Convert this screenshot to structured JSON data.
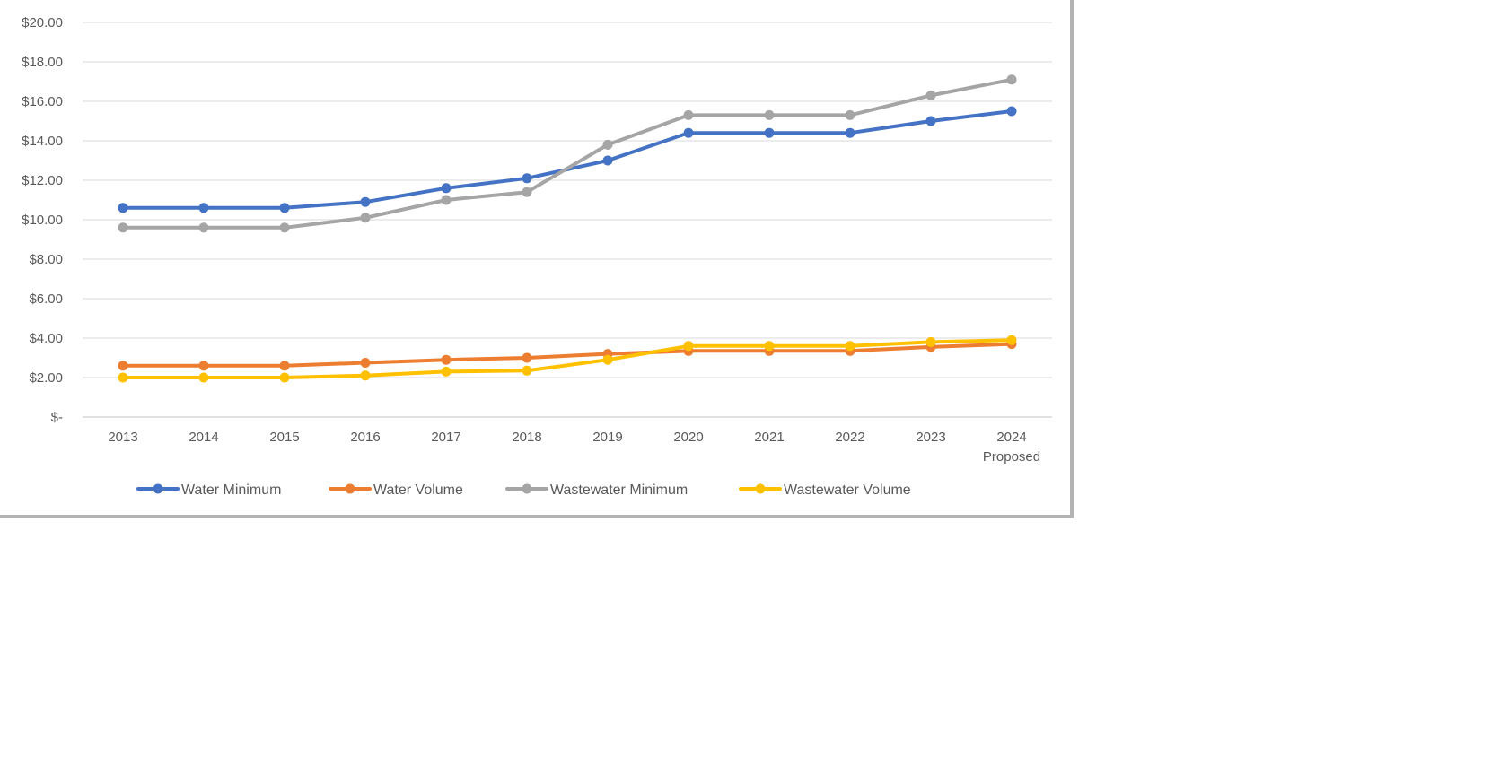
{
  "chart_data": {
    "type": "line",
    "categories": [
      "2013",
      "2014",
      "2015",
      "2016",
      "2017",
      "2018",
      "2019",
      "2020",
      "2021",
      "2022",
      "2023",
      "2024\nProposed"
    ],
    "ylim": [
      0,
      20
    ],
    "yticks": [
      0,
      2,
      4,
      6,
      8,
      10,
      12,
      14,
      16,
      18,
      20
    ],
    "ytick_labels": [
      "$-",
      "$2.00",
      "$4.00",
      "$6.00",
      "$8.00",
      "$10.00",
      "$12.00",
      "$14.00",
      "$16.00",
      "$18.00",
      "$20.00"
    ],
    "grid": true,
    "legend_position": "bottom",
    "series": [
      {
        "name": "Water Minimum",
        "color": "#4472c4",
        "values": [
          10.6,
          10.6,
          10.6,
          10.9,
          11.6,
          12.1,
          13.0,
          14.4,
          14.4,
          14.4,
          15.0,
          15.5
        ]
      },
      {
        "name": "Water Volume",
        "color": "#ed7d31",
        "values": [
          2.6,
          2.6,
          2.6,
          2.75,
          2.9,
          3.0,
          3.2,
          3.35,
          3.35,
          3.35,
          3.55,
          3.7
        ]
      },
      {
        "name": "Wastewater Minimum",
        "color": "#a5a5a5",
        "values": [
          9.6,
          9.6,
          9.6,
          10.1,
          11.0,
          11.4,
          13.8,
          15.3,
          15.3,
          15.3,
          16.3,
          17.1
        ]
      },
      {
        "name": "Wastewater Volume",
        "color": "#ffc000",
        "values": [
          2.0,
          2.0,
          2.0,
          2.1,
          2.3,
          2.35,
          2.9,
          3.6,
          3.6,
          3.6,
          3.8,
          3.9
        ]
      }
    ]
  }
}
